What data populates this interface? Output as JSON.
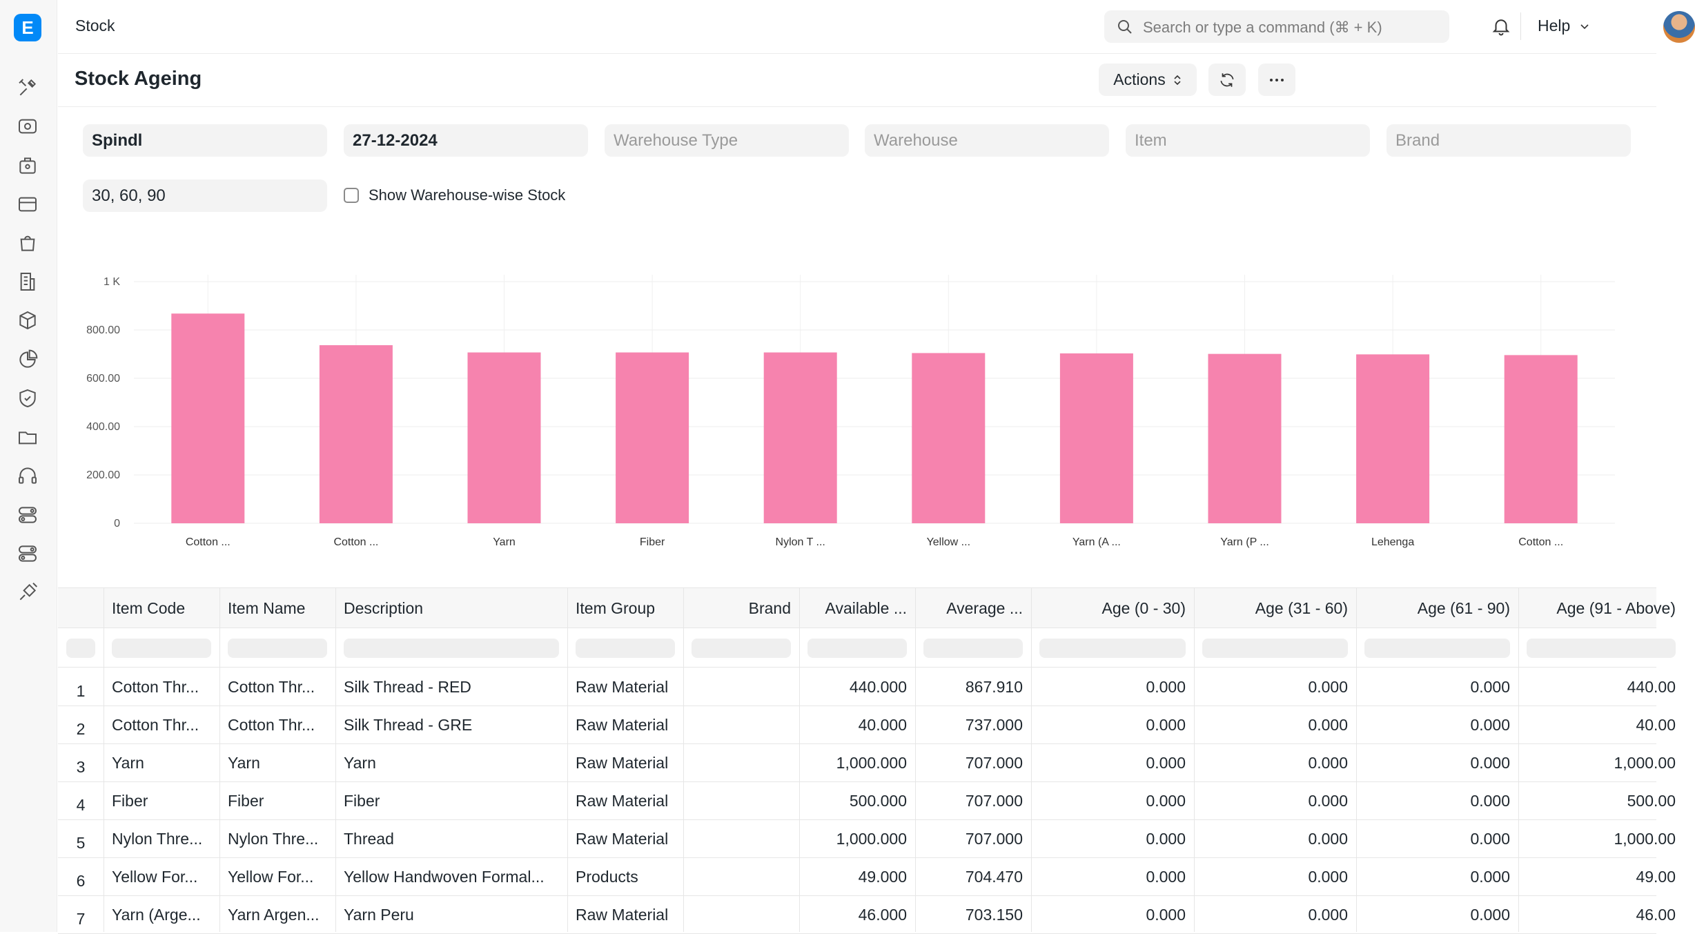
{
  "app": {
    "logo_letter": "E"
  },
  "sidebar": {
    "icons": [
      "tools-icon",
      "eye-icon",
      "briefcase-icon",
      "credit-card-icon",
      "shopping-bag-icon",
      "building-icon",
      "box-icon",
      "pie-chart-icon",
      "shield-icon",
      "folder-icon",
      "headset-icon",
      "toggle-icon",
      "toggle-icon",
      "integration-icon"
    ]
  },
  "topnav": {
    "breadcrumb": "Stock",
    "search_placeholder": "Search or type a command (⌘ + K)",
    "help_label": "Help"
  },
  "page": {
    "title": "Stock Ageing",
    "actions_label": "Actions"
  },
  "filters": {
    "company": "Spindl",
    "date": "27-12-2024",
    "warehouse_type_placeholder": "Warehouse Type",
    "warehouse_placeholder": "Warehouse",
    "item_placeholder": "Item",
    "brand_placeholder": "Brand",
    "range": "30, 60, 90",
    "show_warehouse_wise_label": "Show Warehouse-wise Stock",
    "show_warehouse_wise_checked": false
  },
  "chart_data": {
    "type": "bar",
    "categories": [
      "Cotton ...",
      "Cotton ...",
      "Yarn",
      "Fiber",
      "Nylon T ...",
      "Yellow ...",
      "Yarn (A ...",
      "Yarn (P ...",
      "Lehenga",
      "Cotton ..."
    ],
    "values": [
      867.91,
      737.0,
      707.0,
      707.0,
      707.0,
      704.47,
      703.15,
      701.0,
      699.0,
      696.0
    ],
    "ylim": [
      0,
      1000
    ],
    "yticks": [
      "0",
      "200.00",
      "400.00",
      "600.00",
      "800.00",
      "1 K"
    ],
    "grid": true,
    "bar_color": "#f683ae"
  },
  "table": {
    "columns": [
      "Item Code",
      "Item Name",
      "Description",
      "Item Group",
      "Brand",
      "Available ...",
      "Average ...",
      "Age (0 - 30)",
      "Age (31 - 60)",
      "Age (61 - 90)",
      "Age (91 - Above)"
    ],
    "rows": [
      [
        "1",
        "Cotton Thr...",
        "Cotton Thr...",
        "Silk Thread - RED",
        "Raw Material",
        "",
        "440.000",
        "867.910",
        "0.000",
        "0.000",
        "0.000",
        "440.00"
      ],
      [
        "2",
        "Cotton Thr...",
        "Cotton Thr...",
        "Silk Thread - GRE",
        "Raw Material",
        "",
        "40.000",
        "737.000",
        "0.000",
        "0.000",
        "0.000",
        "40.00"
      ],
      [
        "3",
        "Yarn",
        "Yarn",
        "Yarn",
        "Raw Material",
        "",
        "1,000.000",
        "707.000",
        "0.000",
        "0.000",
        "0.000",
        "1,000.00"
      ],
      [
        "4",
        "Fiber",
        "Fiber",
        "Fiber",
        "Raw Material",
        "",
        "500.000",
        "707.000",
        "0.000",
        "0.000",
        "0.000",
        "500.00"
      ],
      [
        "5",
        "Nylon Thre...",
        "Nylon Thre...",
        "Thread",
        "Raw Material",
        "",
        "1,000.000",
        "707.000",
        "0.000",
        "0.000",
        "0.000",
        "1,000.00"
      ],
      [
        "6",
        "Yellow For...",
        "Yellow For...",
        "Yellow Handwoven Formal...",
        "Products",
        "",
        "49.000",
        "704.470",
        "0.000",
        "0.000",
        "0.000",
        "49.00"
      ],
      [
        "7",
        "Yarn (Arge...",
        "Yarn Argen...",
        "Yarn Peru",
        "Raw Material",
        "",
        "46.000",
        "703.150",
        "0.000",
        "0.000",
        "0.000",
        "46.00"
      ]
    ]
  }
}
